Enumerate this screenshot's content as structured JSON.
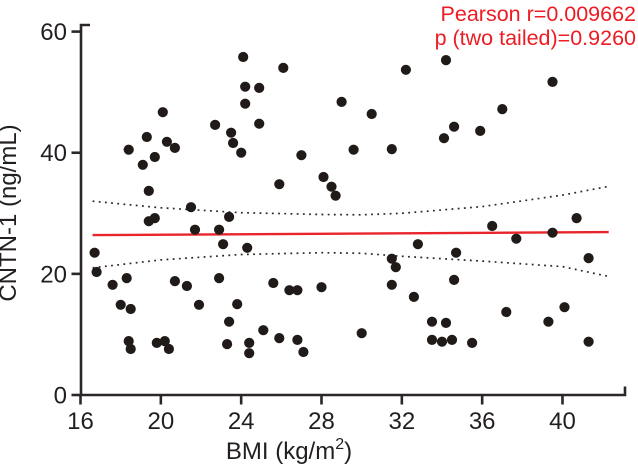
{
  "chart_data": {
    "type": "scatter",
    "annotation": {
      "line1": "Pearson r=0.009662",
      "line2": "p (two tailed)=0.9260",
      "color": "#ed1c24"
    },
    "ylabel": "CNTN-1 (ng/mL)",
    "xlabel": "BMI (kg/m2)",
    "xlabel_parts": {
      "base": "BMI (kg/m",
      "sup": "2",
      "close": ")"
    },
    "x_ticks": [
      16,
      20,
      24,
      28,
      32,
      36,
      40
    ],
    "y_ticks": [
      0,
      20,
      40,
      60
    ],
    "xlim": [
      16,
      43
    ],
    "ylim": [
      0,
      60
    ],
    "grid": false,
    "legend": null,
    "point_color": "#201b18",
    "axis_color": "#2b2726",
    "points": [
      [
        24.1,
        55.8
      ],
      [
        20.1,
        46.7
      ],
      [
        19.3,
        42.6
      ],
      [
        18.4,
        40.5
      ],
      [
        20.3,
        41.8
      ],
      [
        20.7,
        40.8
      ],
      [
        19.1,
        38.0
      ],
      [
        19.7,
        39.3
      ],
      [
        19.4,
        33.7
      ],
      [
        22.7,
        44.6
      ],
      [
        23.5,
        43.3
      ],
      [
        23.6,
        41.6
      ],
      [
        21.5,
        31.0
      ],
      [
        26.1,
        54.0
      ],
      [
        24.2,
        50.9
      ],
      [
        24.9,
        50.7
      ],
      [
        24.2,
        48.1
      ],
      [
        29.0,
        48.4
      ],
      [
        30.5,
        46.4
      ],
      [
        24.9,
        44.8
      ],
      [
        24.0,
        40.0
      ],
      [
        27.0,
        39.6
      ],
      [
        29.6,
        40.5
      ],
      [
        31.5,
        40.6
      ],
      [
        28.1,
        36.0
      ],
      [
        28.5,
        34.4
      ],
      [
        28.7,
        32.9
      ],
      [
        25.9,
        34.8
      ],
      [
        32.2,
        53.7
      ],
      [
        34.2,
        55.3
      ],
      [
        39.5,
        51.7
      ],
      [
        37.0,
        47.2
      ],
      [
        34.6,
        44.3
      ],
      [
        34.1,
        42.4
      ],
      [
        35.9,
        43.6
      ],
      [
        19.4,
        28.7
      ],
      [
        19.7,
        29.2
      ],
      [
        23.4,
        29.4
      ],
      [
        21.7,
        27.3
      ],
      [
        22.9,
        27.3
      ],
      [
        23.1,
        24.9
      ],
      [
        16.7,
        23.5
      ],
      [
        16.8,
        20.3
      ],
      [
        17.6,
        18.2
      ],
      [
        18.3,
        19.3
      ],
      [
        20.7,
        18.8
      ],
      [
        21.3,
        18.0
      ],
      [
        22.9,
        19.3
      ],
      [
        18.0,
        14.9
      ],
      [
        18.5,
        14.2
      ],
      [
        21.9,
        14.9
      ],
      [
        23.8,
        15.0
      ],
      [
        23.4,
        12.1
      ],
      [
        18.4,
        8.9
      ],
      [
        18.5,
        7.6
      ],
      [
        19.8,
        8.6
      ],
      [
        20.2,
        8.9
      ],
      [
        20.4,
        7.6
      ],
      [
        23.3,
        8.4
      ],
      [
        24.3,
        24.3
      ],
      [
        31.5,
        22.5
      ],
      [
        31.7,
        21.1
      ],
      [
        25.6,
        18.5
      ],
      [
        26.4,
        17.3
      ],
      [
        26.8,
        17.3
      ],
      [
        28.0,
        17.8
      ],
      [
        31.5,
        18.2
      ],
      [
        25.1,
        10.7
      ],
      [
        25.9,
        9.4
      ],
      [
        24.4,
        8.6
      ],
      [
        24.4,
        6.9
      ],
      [
        26.8,
        9.1
      ],
      [
        27.1,
        7.1
      ],
      [
        30.0,
        10.2
      ],
      [
        36.5,
        27.9
      ],
      [
        39.5,
        26.8
      ],
      [
        37.7,
        25.8
      ],
      [
        32.8,
        24.9
      ],
      [
        34.7,
        23.5
      ],
      [
        34.6,
        19.0
      ],
      [
        32.6,
        16.2
      ],
      [
        37.2,
        13.7
      ],
      [
        40.1,
        14.5
      ],
      [
        39.3,
        12.1
      ],
      [
        33.5,
        12.1
      ],
      [
        34.2,
        11.9
      ],
      [
        33.5,
        9.1
      ],
      [
        34.0,
        8.8
      ],
      [
        34.5,
        9.1
      ],
      [
        35.5,
        8.6
      ],
      [
        40.7,
        29.2
      ],
      [
        41.3,
        22.6
      ],
      [
        41.3,
        8.8
      ]
    ],
    "regression_line": {
      "color": "#e8252b",
      "x": [
        16.6,
        42.3
      ],
      "y": [
        26.4,
        26.9
      ]
    },
    "ci_upper": [
      [
        16.6,
        32.0
      ],
      [
        20,
        30.9
      ],
      [
        24,
        30.1
      ],
      [
        28,
        29.8
      ],
      [
        30,
        29.75
      ],
      [
        32,
        30.0
      ],
      [
        36,
        31.1
      ],
      [
        40,
        33.0
      ],
      [
        42.4,
        34.5
      ]
    ],
    "ci_lower": [
      [
        16.6,
        21.0
      ],
      [
        20,
        22.3
      ],
      [
        24,
        23.2
      ],
      [
        28,
        23.5
      ],
      [
        30,
        23.4
      ],
      [
        32,
        22.9
      ],
      [
        36,
        22.1
      ],
      [
        40,
        21.2
      ],
      [
        42.4,
        19.5
      ]
    ]
  }
}
